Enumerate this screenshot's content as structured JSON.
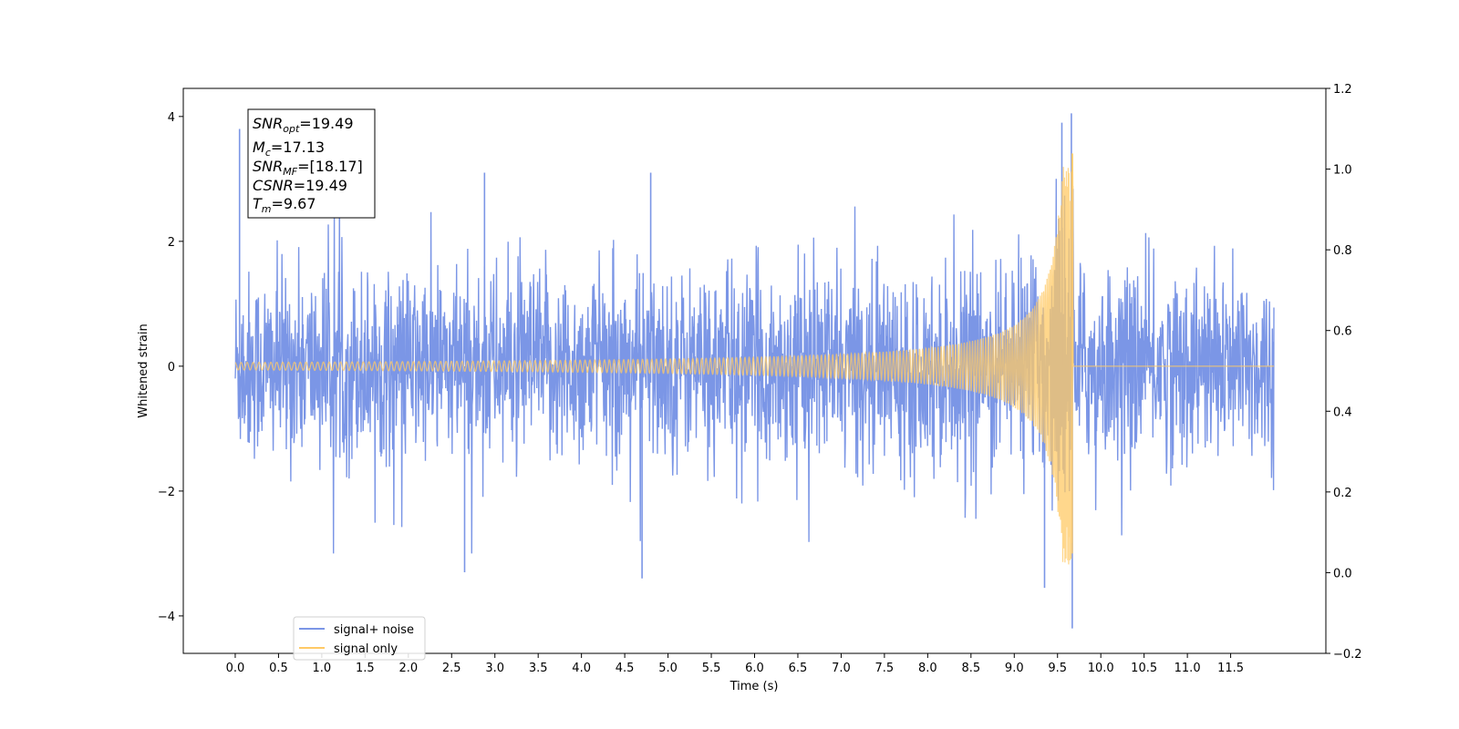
{
  "chart_data": {
    "type": "line",
    "xlabel": "Time (s)",
    "ylabel": "Whitened strain",
    "xlim": [
      -0.6,
      12.6
    ],
    "ylim": [
      -4.6,
      4.45
    ],
    "ylim_right": [
      -0.2,
      1.2
    ],
    "x_ticks": [
      "0.0",
      "0.5",
      "1.0",
      "1.5",
      "2.0",
      "2.5",
      "3.0",
      "3.5",
      "4.0",
      "4.5",
      "5.0",
      "5.5",
      "6.0",
      "6.5",
      "7.0",
      "7.5",
      "8.0",
      "8.5",
      "9.0",
      "9.5",
      "10.0",
      "10.5",
      "11.0",
      "11.5"
    ],
    "y_ticks": [
      "4",
      "2",
      "0",
      "−2",
      "−4"
    ],
    "y_right_ticks": [
      "1.2",
      "1.0",
      "0.8",
      "0.6",
      "0.4",
      "0.2",
      "0.0",
      "−0.2"
    ],
    "grid": false,
    "legend_position": "lower-left",
    "annotation": {
      "snr_opt": {
        "sym": "SNR",
        "sub": "opt",
        "value": "=19.49"
      },
      "mc": {
        "sym": "M",
        "sub": "c",
        "value": "=17.13"
      },
      "snr_mf": {
        "sym": "SNR",
        "sub": "MF",
        "value": "=[18.17]"
      },
      "csnr": {
        "sym": "CSNR",
        "sub": "",
        "value": "=19.49"
      },
      "tm": {
        "sym": "T",
        "sub": "m",
        "value": "=9.67"
      }
    },
    "series": [
      {
        "name": "signal+ noise",
        "color": "#7b96e6",
        "x_range": [
          0.0,
          12.0
        ],
        "noise_sigma": 0.75,
        "notable_points": [
          {
            "x": 0.05,
            "y": 3.8
          },
          {
            "x": 2.88,
            "y": 3.1
          },
          {
            "x": 4.8,
            "y": 3.1
          },
          {
            "x": 9.55,
            "y": 3.9
          },
          {
            "x": 9.66,
            "y": 4.05
          },
          {
            "x": 9.67,
            "y": -4.2
          },
          {
            "x": 9.35,
            "y": -3.55
          },
          {
            "x": 4.7,
            "y": -3.4
          },
          {
            "x": 2.65,
            "y": -3.3
          }
        ]
      },
      {
        "name": "signal only",
        "color": "#ffc966",
        "x_range": [
          0.0,
          12.0
        ],
        "merger_time": 9.67,
        "peak_max": 3.4,
        "peak_min": -3.0,
        "early_amplitude": 0.06
      }
    ]
  }
}
